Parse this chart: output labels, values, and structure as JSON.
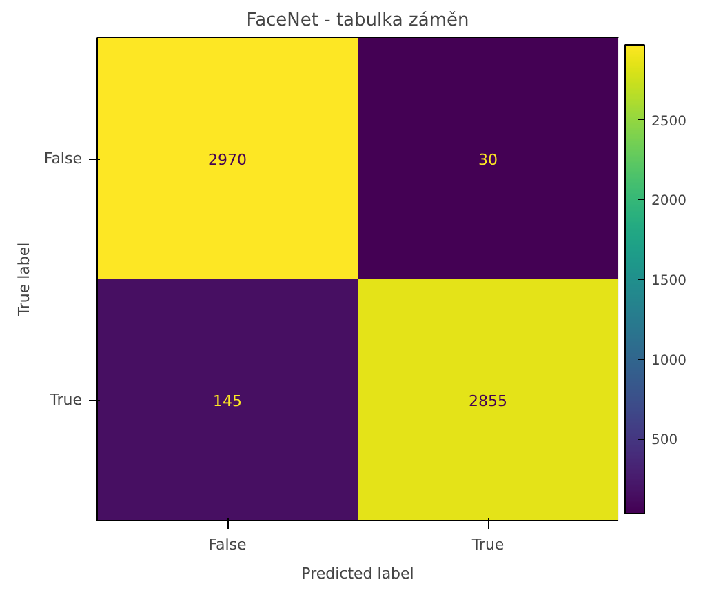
{
  "chart_data": {
    "type": "heatmap",
    "title": "FaceNet - tabulka záměn",
    "xlabel": "Predicted label",
    "ylabel": "True label",
    "categories": [
      "False",
      "True"
    ],
    "y_categories": [
      "False",
      "True"
    ],
    "cells": [
      [
        2970,
        30
      ],
      [
        145,
        2855
      ]
    ],
    "data_labels": true,
    "clim": [
      30,
      2970
    ],
    "cticks": [
      500,
      1000,
      1500,
      2000,
      2500
    ]
  }
}
